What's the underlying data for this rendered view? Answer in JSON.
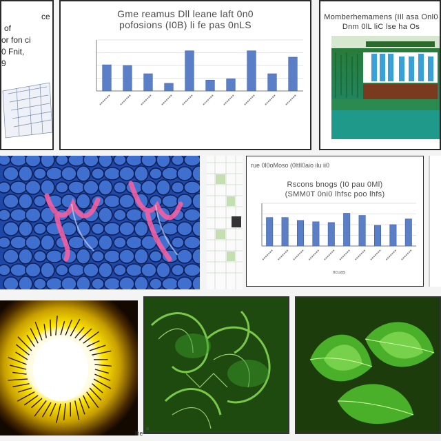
{
  "colors": {
    "bar": "#5b7fc7",
    "bar_edge": "#3d5ea8",
    "axis": "#7a7a7a",
    "grid": "#e3e3e3",
    "cell_blue": "#3f6fcf",
    "cell_pink": "#ff5fa0",
    "green": "#3a9a2a",
    "yellow": "#f5d600"
  },
  "panels": {
    "top_left": {
      "lines": [
        "ce",
        "of",
        "or fon ci",
        "0 Fnit,",
        "9"
      ]
    },
    "top_mid": {
      "title_line1": "Gme reamus Dll leane laft 0n0",
      "title_line2": "pofosions (I0B) li fe pas 0nLS"
    },
    "top_right": {
      "title_line1": "Momberhemamens (IIl asa Onl0",
      "title_line2": "Dnm 0lL liC lse ha Os"
    },
    "mid_right": {
      "header": "rue 0l0oMoso (0ltIl0aio ilu ii0",
      "title_line1": "Rscons bnogs (I0 pau 0Ml)",
      "title_line2": "(SMM0T 0ni0 lhfsc poo lhfs)",
      "xlabel": "ncuas"
    },
    "bottom": {
      "caption_left": "ifie",
      "caption_mid": "a"
    }
  },
  "chart_data": [
    {
      "type": "bar",
      "title": "",
      "categories": [
        "",
        "",
        "",
        "",
        "",
        "",
        "",
        "",
        "",
        ""
      ],
      "values": [
        41,
        40,
        27,
        12,
        63,
        17,
        19,
        63,
        27,
        53
      ],
      "ylim": [
        0,
        80
      ],
      "xlabel": "",
      "ylabel": "",
      "grid": true
    },
    {
      "type": "bar",
      "title": "",
      "categories": [
        "",
        "",
        "",
        "",
        "",
        "",
        "",
        "",
        "",
        ""
      ],
      "values": [
        40,
        40,
        36,
        34,
        33,
        46,
        43,
        29,
        30,
        38
      ],
      "ylim": [
        0,
        60
      ],
      "xlabel": "ncuas",
      "ylabel": "",
      "grid": true
    }
  ]
}
